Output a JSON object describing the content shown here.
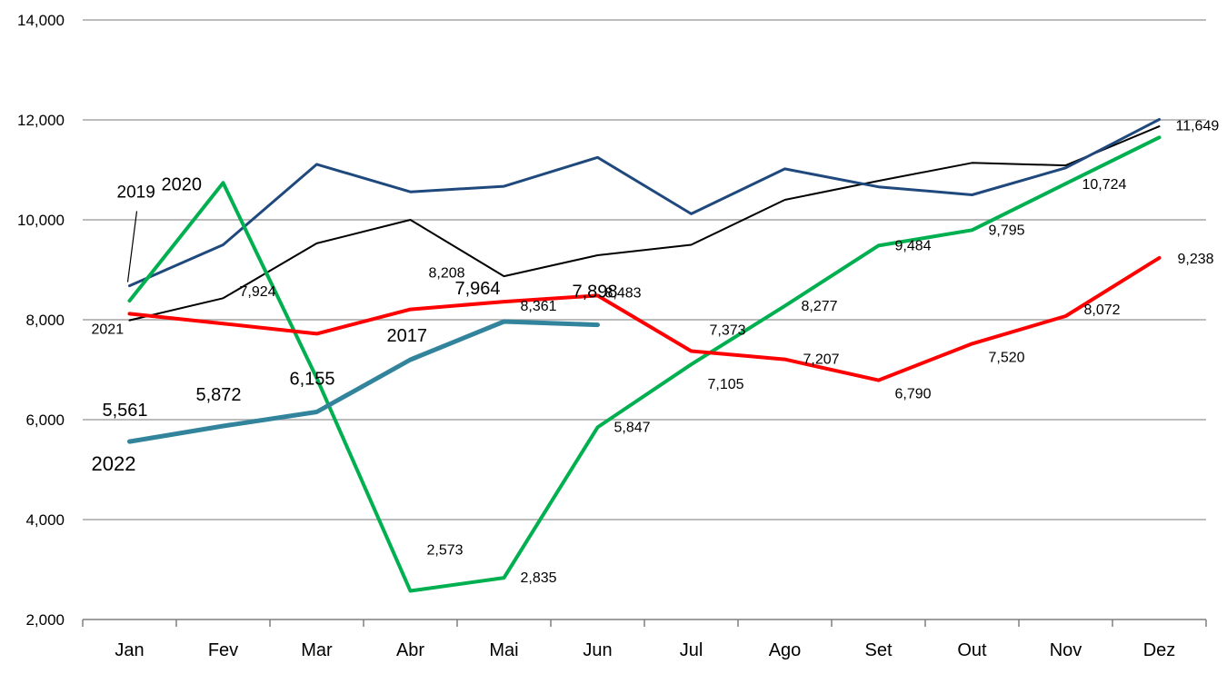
{
  "chart_data": {
    "type": "line",
    "categories": [
      "Jan",
      "Fev",
      "Mar",
      "Abr",
      "Mai",
      "Jun",
      "Jul",
      "Ago",
      "Set",
      "Out",
      "Nov",
      "Dez"
    ],
    "ylim": [
      2000,
      14000
    ],
    "yticks": [
      "2,000",
      "4,000",
      "6,000",
      "8,000",
      "10,000",
      "12,000",
      "14,000"
    ],
    "ytick_values": [
      2000,
      4000,
      6000,
      8000,
      10000,
      12000,
      14000
    ],
    "grid": true,
    "legend": "none",
    "series": [
      {
        "name": "2017",
        "color": "#000000",
        "width": 2,
        "values": [
          7990,
          8430,
          9530,
          10000,
          8870,
          9290,
          9500,
          10400,
          10780,
          11140,
          11090,
          11870
        ]
      },
      {
        "name": "2019",
        "color": "#1f497d",
        "width": 3,
        "values": [
          8680,
          9500,
          11110,
          10560,
          10670,
          11250,
          10120,
          11020,
          10660,
          10500,
          11040,
          12010
        ]
      },
      {
        "name": "2020",
        "color": "#00b050",
        "width": 4,
        "values": [
          8380,
          10740,
          6830,
          2573,
          2835,
          5847,
          7105,
          8277,
          9484,
          9795,
          10724,
          11649
        ]
      },
      {
        "name": "2021",
        "color": "#ff0000",
        "width": 4,
        "values": [
          8120,
          7924,
          7720,
          8208,
          8361,
          8483,
          7373,
          7207,
          6790,
          7520,
          8072,
          9238
        ]
      },
      {
        "name": "2022",
        "color": "#31849b",
        "width": 5,
        "values": [
          5561,
          5872,
          6155,
          7200,
          7964,
          7898,
          null,
          null,
          null,
          null,
          null,
          null
        ]
      }
    ],
    "data_labels": [
      {
        "text": "7,924",
        "series": "2021",
        "index": 1
      },
      {
        "text": "8,208",
        "series": "2021",
        "index": 3
      },
      {
        "text": "8,361",
        "series": "2021",
        "index": 4
      },
      {
        "text": "8,483",
        "series": "2021",
        "index": 5
      },
      {
        "text": "7,373",
        "series": "2021",
        "index": 6
      },
      {
        "text": "7,207",
        "series": "2021",
        "index": 7
      },
      {
        "text": "6,790",
        "series": "2021",
        "index": 8
      },
      {
        "text": "7,520",
        "series": "2021",
        "index": 9
      },
      {
        "text": "8,072",
        "series": "2021",
        "index": 10
      },
      {
        "text": "9,238",
        "series": "2021",
        "index": 11
      },
      {
        "text": "2,573",
        "series": "2020",
        "index": 3
      },
      {
        "text": "2,835",
        "series": "2020",
        "index": 4
      },
      {
        "text": "5,847",
        "series": "2020",
        "index": 5
      },
      {
        "text": "7,105",
        "series": "2020",
        "index": 6
      },
      {
        "text": "8,277",
        "series": "2020",
        "index": 7
      },
      {
        "text": "9,484",
        "series": "2020",
        "index": 8
      },
      {
        "text": "9,795",
        "series": "2020",
        "index": 9
      },
      {
        "text": "10,724",
        "series": "2020",
        "index": 10
      },
      {
        "text": "11,649",
        "series": "2020",
        "index": 11
      },
      {
        "text": "5,561",
        "series": "2022",
        "index": 0
      },
      {
        "text": "5,872",
        "series": "2022",
        "index": 1
      },
      {
        "text": "6,155",
        "series": "2022",
        "index": 2
      },
      {
        "text": "7,964",
        "series": "2022",
        "index": 4
      },
      {
        "text": "7,898",
        "series": "2022",
        "index": 5
      }
    ],
    "series_tags": [
      {
        "text": "2019",
        "series": "2019"
      },
      {
        "text": "2020",
        "series": "2020"
      },
      {
        "text": "2021",
        "series": "2021"
      },
      {
        "text": "2017",
        "series": "2017"
      },
      {
        "text": "2022",
        "series": "2022"
      }
    ]
  }
}
